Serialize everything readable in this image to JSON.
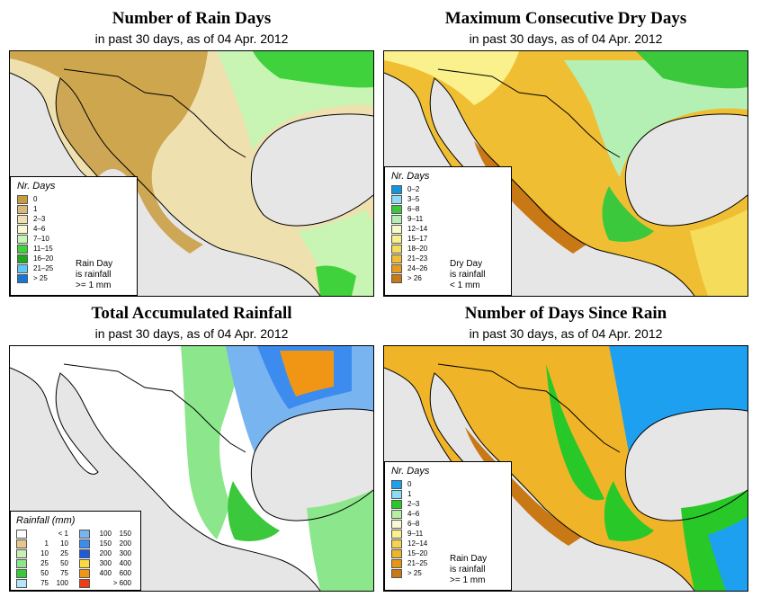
{
  "panels": {
    "rain_days": {
      "title": "Number of Rain Days",
      "subtitle": "in past 30 days, as of  04 Apr. 2012",
      "legend_title": "Nr. Days",
      "legend": [
        {
          "label": "0",
          "color": "#c89b3c"
        },
        {
          "label": "1",
          "color": "#d9b87a"
        },
        {
          "label": "2–3",
          "color": "#efe0b0"
        },
        {
          "label": "4–6",
          "color": "#fafad2"
        },
        {
          "label": "7–10",
          "color": "#c8f5b4"
        },
        {
          "label": "11–15",
          "color": "#3fd23c"
        },
        {
          "label": "16–20",
          "color": "#1ea81e"
        },
        {
          "label": "21–25",
          "color": "#5cc8f5"
        },
        {
          "label": "> 25",
          "color": "#1478d2"
        }
      ],
      "note": [
        "Rain Day",
        "is rainfall",
        ">= 1 mm"
      ]
    },
    "dry_days": {
      "title": "Maximum Consecutive Dry Days",
      "subtitle": "in past 30 days, as of  04 Apr. 2012",
      "legend_title": "Nr. Days",
      "legend": [
        {
          "label": "0–2",
          "color": "#1496dc"
        },
        {
          "label": "3–5",
          "color": "#8cdcf5"
        },
        {
          "label": "6–8",
          "color": "#3cc83c"
        },
        {
          "label": "9–11",
          "color": "#b4f0b4"
        },
        {
          "label": "12–14",
          "color": "#fafac8"
        },
        {
          "label": "15–17",
          "color": "#faf08c"
        },
        {
          "label": "18–20",
          "color": "#f5dc5a"
        },
        {
          "label": "21–23",
          "color": "#f0be32"
        },
        {
          "label": "24–26",
          "color": "#e69b1e"
        },
        {
          "label": "> 26",
          "color": "#c87814"
        }
      ],
      "note": [
        "Dry Day",
        "is rainfall",
        "< 1 mm"
      ]
    },
    "total_rain": {
      "title": "Total Accumulated Rainfall",
      "subtitle": "in past 30 days, as of  04 Apr. 2012",
      "legend_title": "Rainfall (mm)",
      "legend_left": [
        {
          "lo": "",
          "hi": "< 1",
          "color": "#ffffff"
        },
        {
          "lo": "1",
          "hi": "10",
          "color": "#e6c88c"
        },
        {
          "lo": "10",
          "hi": "25",
          "color": "#c8f0b4"
        },
        {
          "lo": "25",
          "hi": "50",
          "color": "#8ce68c"
        },
        {
          "lo": "50",
          "hi": "75",
          "color": "#3cc83c"
        },
        {
          "lo": "75",
          "hi": "100",
          "color": "#b4e6fa"
        }
      ],
      "legend_right": [
        {
          "lo": "100",
          "hi": "150",
          "color": "#78b4f0"
        },
        {
          "lo": "150",
          "hi": "200",
          "color": "#3c8cf0"
        },
        {
          "lo": "200",
          "hi": "300",
          "color": "#1e5adc"
        },
        {
          "lo": "300",
          "hi": "400",
          "color": "#fadc3c"
        },
        {
          "lo": "400",
          "hi": "600",
          "color": "#f09614"
        },
        {
          "lo": "",
          "hi": "> 600",
          "color": "#f03c14"
        }
      ]
    },
    "since_rain": {
      "title": "Number of Days Since Rain",
      "subtitle": "in past 30 days, as of  04 Apr. 2012",
      "legend_title": "Nr. Days",
      "legend": [
        {
          "label": "0",
          "color": "#1ea0f0"
        },
        {
          "label": "1",
          "color": "#8cdcf5"
        },
        {
          "label": "2–3",
          "color": "#28c828"
        },
        {
          "label": "4–6",
          "color": "#b4f0a0"
        },
        {
          "label": "6–8",
          "color": "#fafad2"
        },
        {
          "label": "9–11",
          "color": "#faf08c"
        },
        {
          "label": "12–14",
          "color": "#f5d250"
        },
        {
          "label": "15–20",
          "color": "#f0b428"
        },
        {
          "label": "21–25",
          "color": "#e69614"
        },
        {
          "label": "> 25",
          "color": "#c87814"
        }
      ],
      "note": [
        "Rain Day",
        "is rainfall",
        ">= 1 mm"
      ]
    }
  },
  "map_colors": {
    "background": "#e6e6e6",
    "outline": "#000000"
  }
}
